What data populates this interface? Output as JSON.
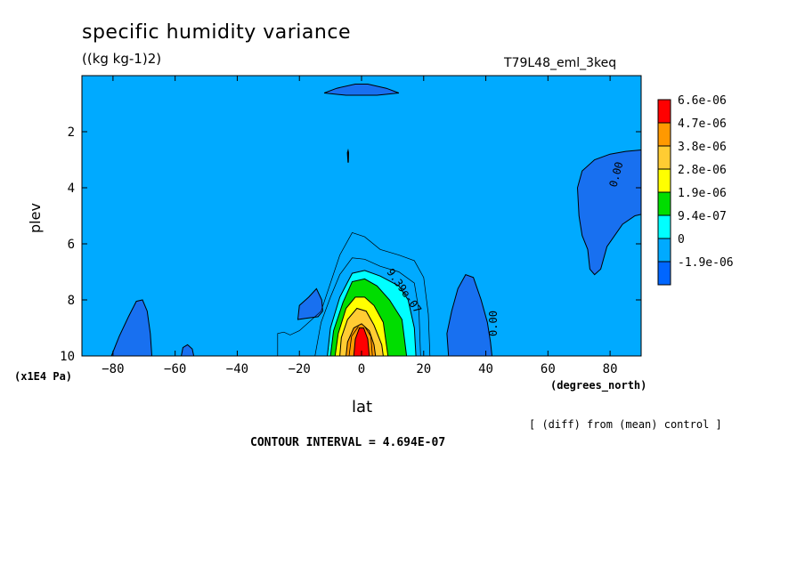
{
  "header": {
    "title": "specific humidity variance",
    "units": "((kg kg-1)2)",
    "run_name": "T79L48_eml_3keq"
  },
  "footer": {
    "diff_note": "[ (diff) from (mean) control ]",
    "contour_interval": "CONTOUR INTERVAL = 4.694E-07"
  },
  "chart_data": {
    "type": "contour",
    "title": "specific humidity variance",
    "units": "((kg kg-1)2)",
    "xlabel": "lat",
    "x_units": "(degrees_north)",
    "ylabel": "plev",
    "y_units": "(x1E4 Pa)",
    "xlim": [
      -90,
      90
    ],
    "ylim": [
      0,
      10
    ],
    "y_inverted": true,
    "x_ticks": [
      -80,
      -60,
      -40,
      -20,
      0,
      20,
      40,
      60,
      80
    ],
    "y_ticks": [
      2,
      4,
      6,
      8,
      10
    ],
    "contour_interval": 4.694e-07,
    "contour_labels": [
      "0.00",
      "0.00",
      "9.39e-07"
    ],
    "colorbar": {
      "labels": [
        "6.6e-06",
        "4.7e-06",
        "3.8e-06",
        "2.8e-06",
        "1.9e-06",
        "9.4e-07",
        "0",
        "-1.9e-06"
      ],
      "colors": [
        "#ff0000",
        "#ff9900",
        "#ffcc33",
        "#ffff00",
        "#00dd00",
        "#00ffff",
        "#00aaff",
        "#0066ff"
      ]
    },
    "colors": {
      "background_fill": "#00aaff",
      "negative_fill": "#1870f0",
      "positive_low": "#00ffff",
      "positive_mid": "#00dd00",
      "positive_high": "#ffff00",
      "positive_higher": "#ffcc33",
      "positive_top": "#ff9900",
      "maximum": "#ff0000"
    },
    "regions": [
      {
        "name": "negative-top-cap",
        "sign": "negative",
        "lat": [
          -12,
          12
        ],
        "plev": [
          0.2,
          0.8
        ]
      },
      {
        "name": "negative-right-upper",
        "sign": "negative",
        "lat": [
          70,
          90
        ],
        "plev": [
          2.7,
          7.1
        ]
      },
      {
        "name": "negative-right-lower",
        "sign": "negative",
        "lat": [
          28,
          42
        ],
        "plev": [
          7.1,
          10
        ]
      },
      {
        "name": "negative-left-bottom",
        "sign": "negative",
        "lat": [
          -80,
          -68
        ],
        "plev": [
          8.0,
          10
        ]
      },
      {
        "name": "negative-left-small",
        "sign": "negative",
        "lat": [
          -58,
          -54
        ],
        "plev": [
          9.6,
          10
        ]
      },
      {
        "name": "negative-left-mid",
        "sign": "negative",
        "lat": [
          -20,
          -12
        ],
        "plev": [
          7.6,
          8.6
        ]
      },
      {
        "name": "positive-maximum",
        "sign": "positive",
        "lat": [
          -8,
          20
        ],
        "plev": [
          5.6,
          10
        ],
        "peak_lat": 0,
        "peak_plev": 10
      }
    ]
  }
}
